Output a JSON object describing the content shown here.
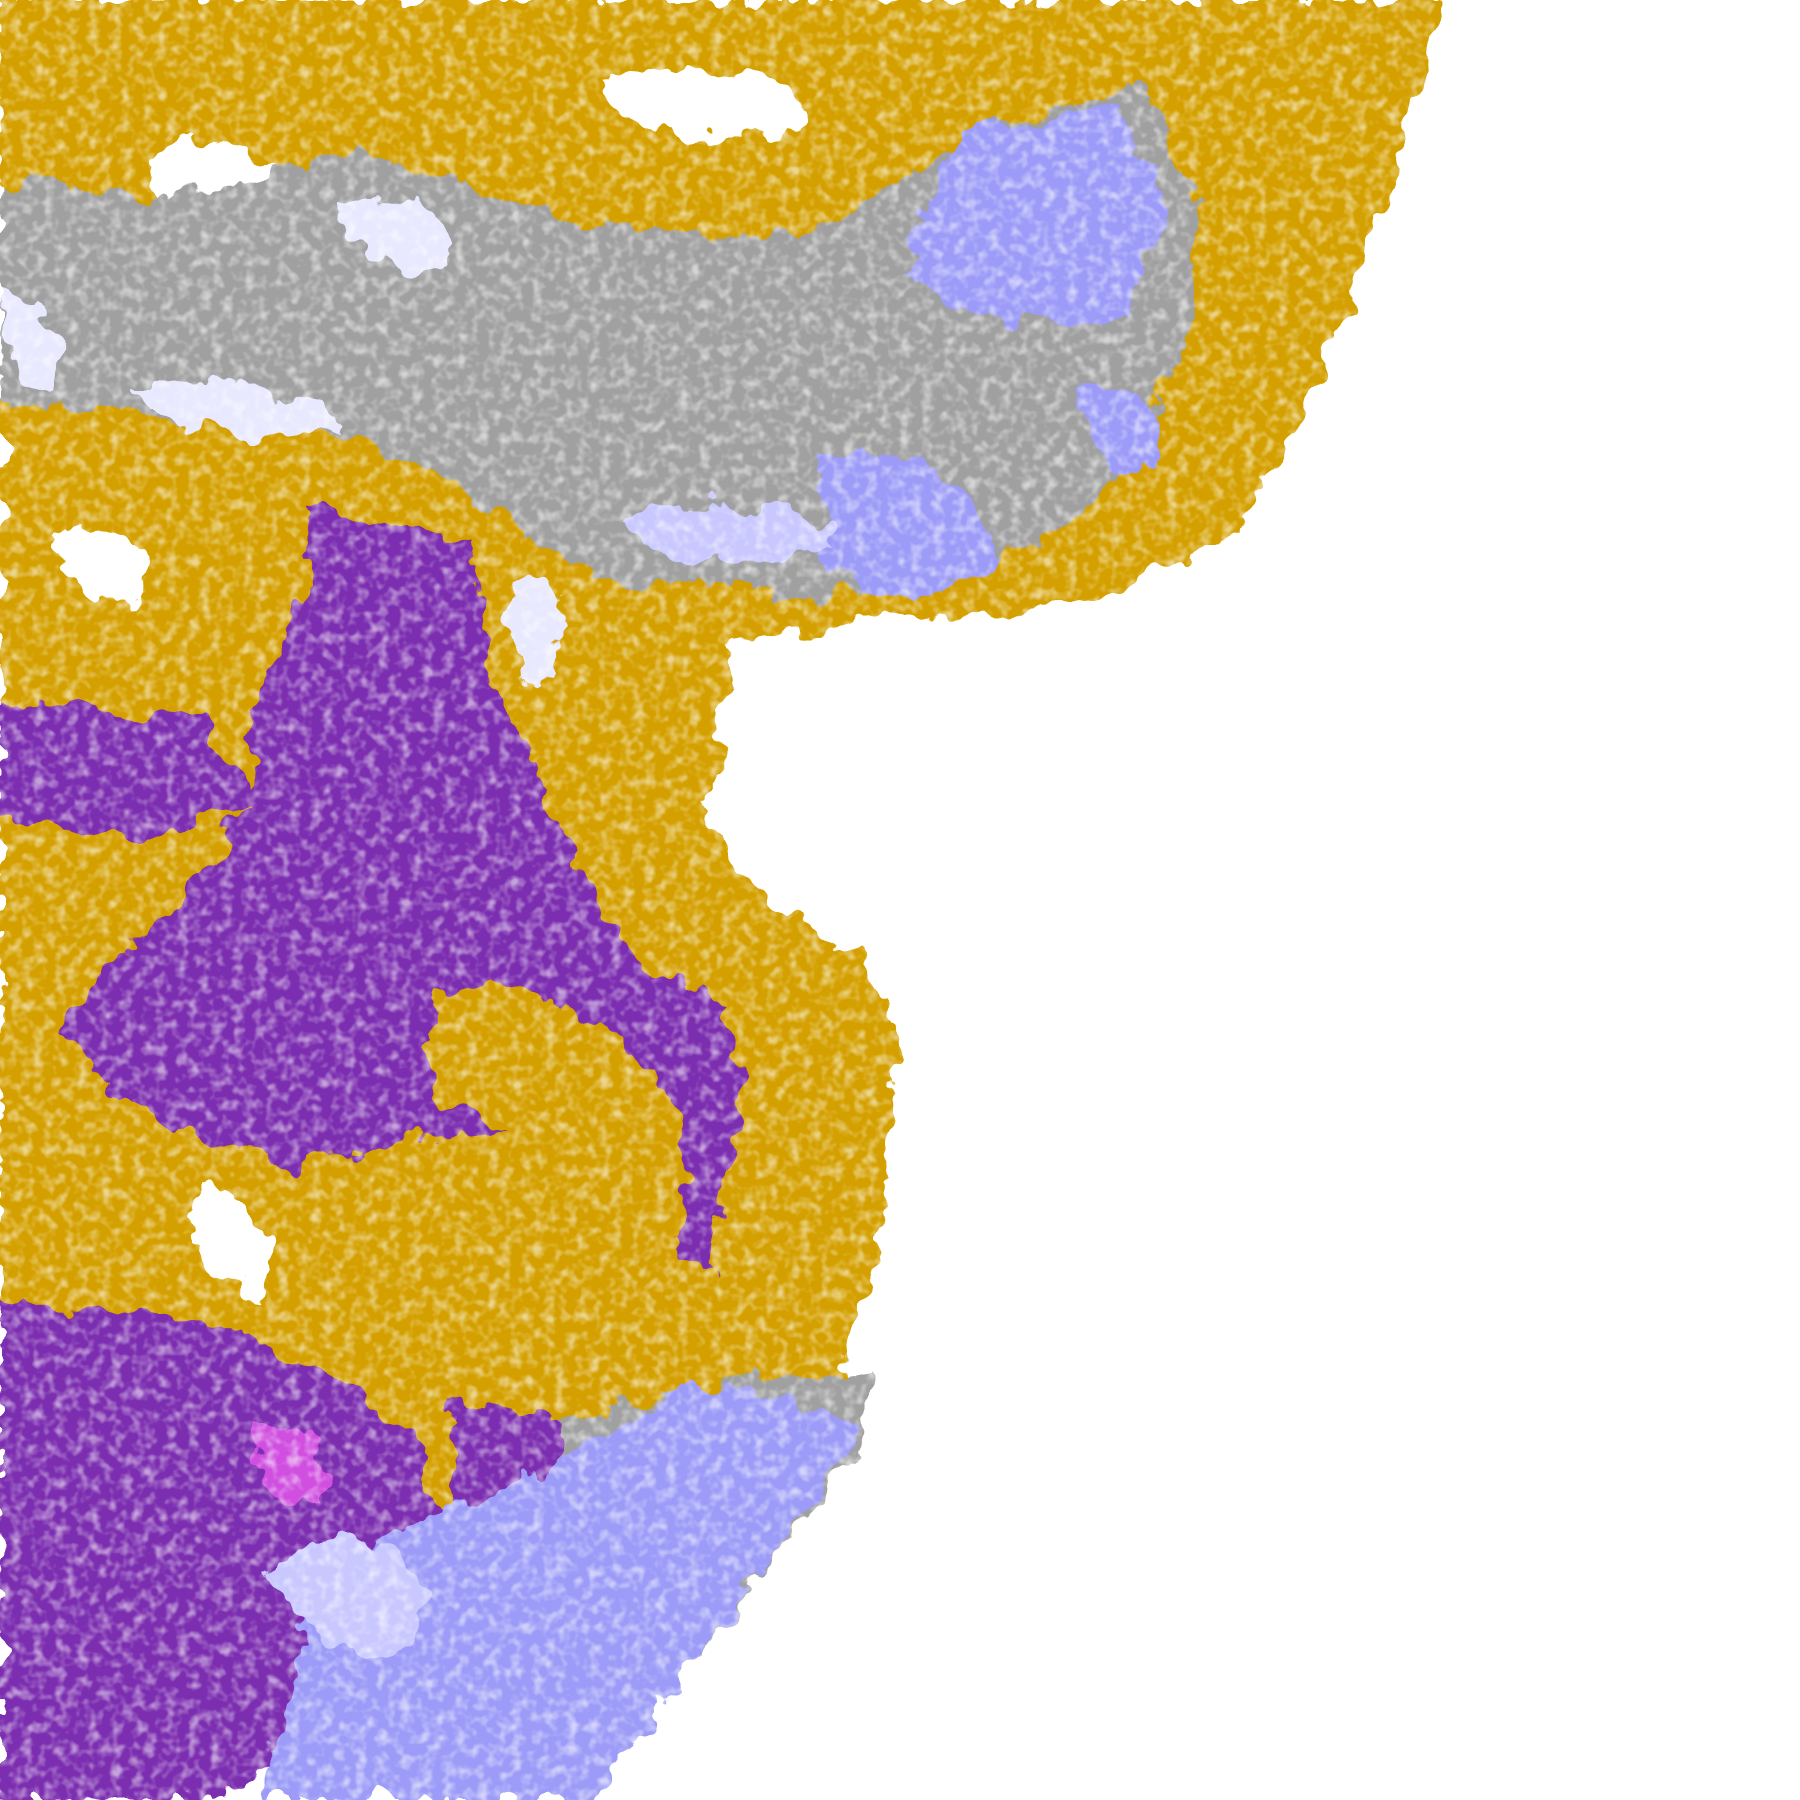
{
  "image": {
    "kind": "satellite cloud-type classification (full-disk edge)",
    "background": "#ffffff",
    "palette": {
      "low_cloud": "#d4a000",
      "low_cloud_dark": "#b8860b",
      "mid_cloud": "#7b2fb0",
      "thin_cirrus": "#a0a0a0",
      "cirrus_dark": "#8c8c8c",
      "thick_ice": "#9c9cf8",
      "overshooting": "#e8e8ff",
      "mixed": "#c8c8ff",
      "multilayer": "#d050e0"
    }
  }
}
